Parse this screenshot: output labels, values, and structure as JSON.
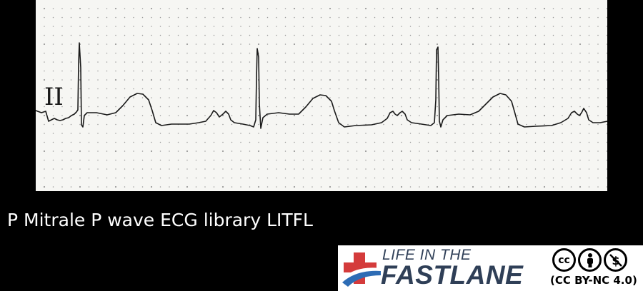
{
  "ecg": {
    "lead_label": "II",
    "colors": {
      "paper": "#f6f6f3",
      "grid_dots": "#9a9a9a",
      "trace": "#1a1a1a"
    }
  },
  "caption": "P Mitrale P wave ECG library LITFL",
  "badge": {
    "logo_line1": "LIFE IN THE",
    "logo_line2": "FASTLANE",
    "license": "(CC BY-NC 4.0)",
    "icons": [
      "cc-icon",
      "attribution-person-icon",
      "non-commercial-dollar-icon"
    ],
    "colors": {
      "text": "#2f3f57",
      "red": "#d43b3b",
      "blue": "#2d6cb5"
    }
  }
}
